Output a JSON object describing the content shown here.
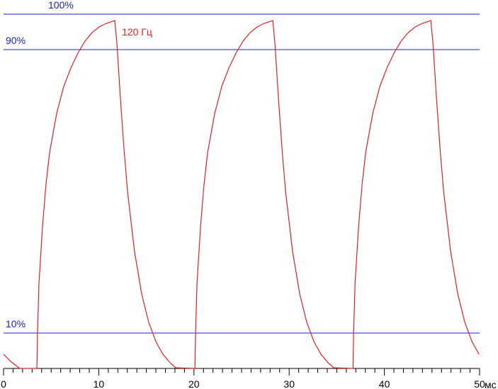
{
  "chart_data": {
    "type": "line",
    "x_label": "мс",
    "xlim": [
      0,
      50
    ],
    "xticks": [
      0,
      10,
      20,
      30,
      40,
      50
    ],
    "xminorticks": [
      1,
      2,
      3,
      4,
      5,
      6,
      7,
      8,
      9,
      11,
      12,
      13,
      14,
      15,
      16,
      17,
      18,
      19,
      21,
      22,
      23,
      24,
      25,
      26,
      27,
      28,
      29,
      31,
      32,
      33,
      34,
      35,
      36,
      37,
      38,
      39,
      41,
      42,
      43,
      44,
      45,
      46,
      47,
      48,
      49
    ],
    "ylim": [
      0,
      100
    ],
    "yticks": [
      {
        "value": 10,
        "label": "10%"
      },
      {
        "value": 90,
        "label": "90%"
      },
      {
        "value": 100,
        "label": "100%"
      }
    ],
    "grid_color": "#2020c0",
    "x": [
      0,
      0.74,
      1.7,
      3.5,
      3.57,
      3.72,
      4.09,
      4.46,
      4.84,
      5.58,
      6.32,
      7.07,
      7.81,
      8.56,
      9.3,
      10.04,
      10.79,
      11.68,
      11.9,
      12.28,
      12.65,
      13.02,
      13.76,
      14.51,
      15.25,
      16.0,
      16.74,
      17.49,
      18.08,
      20.1,
      20.17,
      20.32,
      20.69,
      21.06,
      21.44,
      22.18,
      22.92,
      23.67,
      24.41,
      25.16,
      25.9,
      26.64,
      27.39,
      28.28,
      28.5,
      28.88,
      29.25,
      29.62,
      30.36,
      31.11,
      31.85,
      32.6,
      33.34,
      34.09,
      34.68,
      36.7,
      36.77,
      36.92,
      37.29,
      37.66,
      38.04,
      38.78,
      39.52,
      40.27,
      41.01,
      41.76,
      42.5,
      43.24,
      43.99,
      44.88,
      45.1,
      45.48,
      45.85,
      46.22,
      46.96,
      47.71,
      48.45,
      49.2,
      49.94
    ],
    "series": [
      {
        "name": "120 Гц",
        "color": "#e02020",
        "values": [
          4,
          2,
          0,
          0,
          10,
          24,
          40,
          52,
          61,
          72,
          79.6,
          84.8,
          89,
          92.4,
          94.8,
          96.4,
          97.4,
          98.2,
          92,
          76,
          62,
          50,
          33,
          21,
          13,
          7.6,
          4,
          1.6,
          0.2,
          0,
          10,
          24,
          40,
          52,
          61,
          72,
          79.6,
          84.8,
          89,
          92.4,
          94.8,
          96.4,
          97.4,
          98.2,
          92,
          76,
          62,
          50,
          33,
          21,
          13,
          7.6,
          4,
          1.6,
          0.2,
          0,
          10,
          24,
          40,
          52,
          61,
          72,
          79.6,
          84.8,
          89,
          92.4,
          94.8,
          96.4,
          97.4,
          98.2,
          92,
          76,
          62,
          50,
          33,
          21,
          13,
          7.6,
          4
        ]
      }
    ]
  }
}
